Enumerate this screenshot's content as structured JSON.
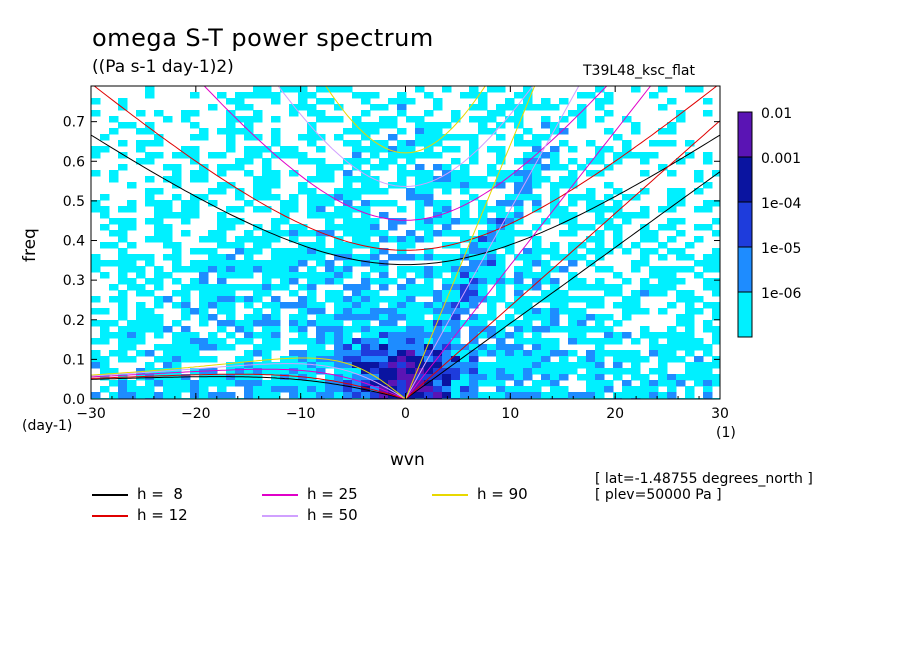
{
  "chart_data": {
    "type": "heatmap",
    "title": "omega S-T power spectrum",
    "subtitle": "((Pa s-1 day-1)2)",
    "run_label": "T39L48_ksc_flat",
    "xlabel": "wvn",
    "ylabel": "freq",
    "x_unit": "(1)",
    "y_unit": "(day-1)",
    "xlim": [
      -30,
      30
    ],
    "ylim": [
      0,
      0.79
    ],
    "x_ticks": [
      -30,
      -20,
      -10,
      0,
      10,
      20,
      30
    ],
    "x_tick_labels": [
      "-30",
      "-20",
      "-10",
      "0",
      "10",
      "20",
      "30"
    ],
    "y_ticks": [
      0,
      0.1,
      0.2,
      0.3,
      0.4,
      0.5,
      0.6,
      0.7
    ],
    "y_tick_labels": [
      "0.0",
      "0.1",
      "0.2",
      "0.3",
      "0.4",
      "0.5",
      "0.6",
      "0.7"
    ],
    "colorbar": {
      "levels": [
        "0.01",
        "0.001",
        "1e-04",
        "1e-05",
        "1e-06"
      ],
      "colors": [
        "#5a14b4",
        "#0a14a0",
        "#1e3cdc",
        "#1e8cff",
        "#00f0ff"
      ]
    },
    "dispersion_curves": [
      {
        "name": "h =  8",
        "h": 8,
        "color": "#000000"
      },
      {
        "name": "h = 12",
        "h": 12,
        "color": "#e00000"
      },
      {
        "name": "h = 25",
        "h": 25,
        "color": "#e000c8"
      },
      {
        "name": "h = 50",
        "h": 50,
        "color": "#d0a0ff"
      },
      {
        "name": "h = 90",
        "h": 90,
        "color": "#e8d800"
      }
    ],
    "annotations": [
      "[ lat=-1.48755 degrees_north ]",
      "[ plev=50000 Pa ]"
    ]
  }
}
